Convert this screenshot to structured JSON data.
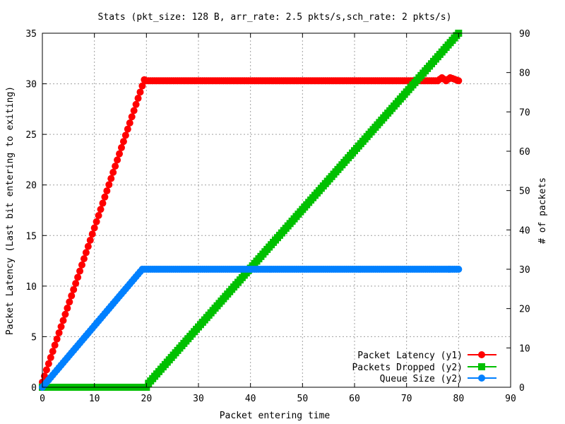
{
  "chart_data": {
    "type": "scatter",
    "title": "Stats (pkt_size: 128 B, arr_rate: 2.5 pkts/s,sch_rate: 2 pkts/s)",
    "xlabel": "Packet entering time",
    "ylabel": "Packet Latency (Last bit entering to exiting)",
    "y2label": "# of packets",
    "xlim": [
      0,
      90
    ],
    "ylim": [
      0,
      35
    ],
    "y2lim": [
      0,
      90
    ],
    "xticks": [
      "0",
      "10",
      "20",
      "30",
      "40",
      "50",
      "60",
      "70",
      "80",
      "90"
    ],
    "yticks": [
      "0",
      "5",
      "10",
      "15",
      "20",
      "25",
      "30",
      "35"
    ],
    "y2ticks": [
      "0",
      "10",
      "20",
      "30",
      "40",
      "50",
      "60",
      "70",
      "80",
      "90"
    ],
    "grid": true,
    "legend_position": "bottom-right",
    "series": [
      {
        "name": "Packet Latency (y1)",
        "axis": "y1",
        "marker": "circle",
        "color": "#ff0000",
        "points": [
          [
            0,
            0.5
          ],
          [
            19.6,
            30.4
          ],
          [
            20,
            30.3
          ],
          [
            76,
            30.3
          ],
          [
            76.8,
            30.6
          ],
          [
            77.6,
            30.3
          ],
          [
            78.4,
            30.6
          ],
          [
            80,
            30.3
          ]
        ]
      },
      {
        "name": "Packets Dropped (y2)",
        "axis": "y2",
        "marker": "square",
        "color": "#00c000",
        "points": [
          [
            0,
            0
          ],
          [
            20,
            0
          ],
          [
            20.4,
            1
          ],
          [
            80,
            90
          ]
        ]
      },
      {
        "name": "Queue Size (y2)",
        "axis": "y2",
        "marker": "circle",
        "color": "#0080ff",
        "points": [
          [
            0,
            0
          ],
          [
            19.2,
            30
          ],
          [
            80,
            30
          ]
        ]
      }
    ]
  }
}
